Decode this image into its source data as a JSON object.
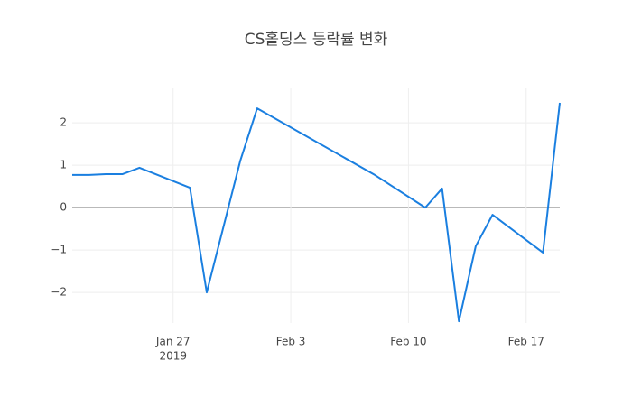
{
  "chart_data": {
    "type": "line",
    "title": "CS홀딩스 등락률 변화",
    "x": [
      "2019-01-21",
      "2019-01-22",
      "2019-01-23",
      "2019-01-24",
      "2019-01-25",
      "2019-01-28",
      "2019-01-29",
      "2019-01-31",
      "2019-02-01",
      "2019-02-08",
      "2019-02-11",
      "2019-02-12",
      "2019-02-13",
      "2019-02-14",
      "2019-02-15",
      "2019-02-18",
      "2019-02-19"
    ],
    "series": [
      {
        "name": "CS홀딩스",
        "color": "#1a7fe0",
        "values": [
          0.77,
          0.77,
          0.79,
          0.79,
          0.94,
          0.47,
          -2.0,
          1.11,
          2.34,
          0.77,
          0,
          0.45,
          -2.68,
          -0.91,
          -0.17,
          -1.06,
          2.47
        ]
      }
    ],
    "xlim": [
      "2019-01-21",
      "2019-02-19"
    ],
    "xticks": [
      {
        "value": "2019-01-27",
        "label": "Jan 27"
      },
      {
        "value": "2019-02-03",
        "label": "Feb 3"
      },
      {
        "value": "2019-02-10",
        "label": "Feb 10"
      },
      {
        "value": "2019-02-17",
        "label": "Feb 17"
      }
    ],
    "x_year_label": "2019",
    "ylim": [
      -2.72,
      2.81
    ],
    "yticks": [
      {
        "value": -2,
        "label": "−2"
      },
      {
        "value": -1,
        "label": "−1"
      },
      0,
      1,
      2
    ],
    "grid": true
  }
}
